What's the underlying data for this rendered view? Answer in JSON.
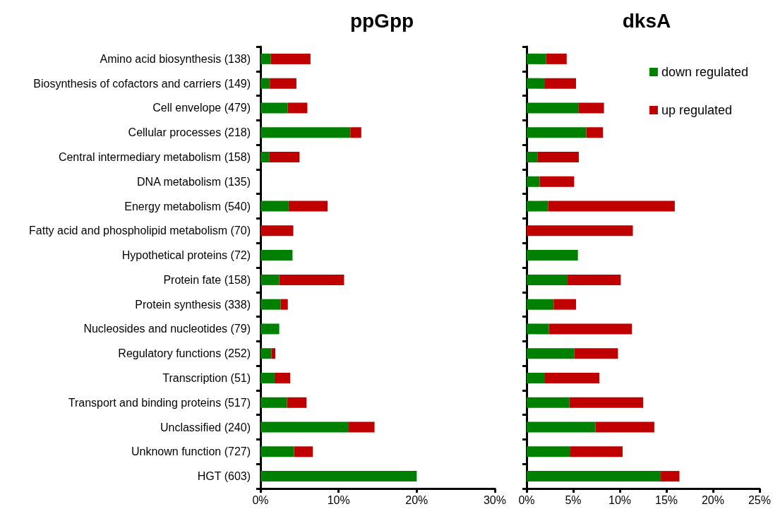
{
  "chart_data": [
    {
      "type": "bar",
      "orientation": "horizontal",
      "stacked": true,
      "title": "ppGpp",
      "categories": [
        "Amino acid biosynthesis (138)",
        "Biosynthesis of cofactors and carriers (149)",
        "Cell envelope (479)",
        "Cellular processes (218)",
        "Central intermediary metabolism (158)",
        "DNA metabolism (135)",
        "Energy metabolism (540)",
        "Fatty acid and phospholipid metabolism (70)",
        "Hypothetical proteins (72)",
        "Protein fate (158)",
        "Protein synthesis (338)",
        "Nucleosides and nucleotides (79)",
        "Regulatory functions (252)",
        "Transcription (51)",
        "Transport and binding proteins (517)",
        "Unclassified (240)",
        "Unknown function (727)",
        "HGT (603)"
      ],
      "series": [
        {
          "color": "#008000",
          "values": [
            1.3,
            1.2,
            3.5,
            11.5,
            1.1,
            0,
            3.6,
            0,
            4.1,
            2.4,
            2.6,
            2.4,
            1.4,
            1.8,
            3.4,
            11.3,
            4.3,
            20.0
          ]
        },
        {
          "color": "#c00000",
          "values": [
            5.1,
            3.4,
            2.5,
            1.4,
            3.9,
            0,
            5.0,
            4.2,
            0,
            8.3,
            0.9,
            0,
            0.5,
            2.0,
            2.5,
            3.3,
            2.4,
            0
          ]
        }
      ],
      "xlim": [
        0,
        30
      ],
      "xticks": [
        {
          "value": 0,
          "label": "0%"
        },
        {
          "value": 10,
          "label": "10%"
        },
        {
          "value": 20,
          "label": "20%"
        },
        {
          "value": 30,
          "label": "30%"
        }
      ],
      "grid": false,
      "legend": false
    },
    {
      "type": "bar",
      "orientation": "horizontal",
      "stacked": true,
      "title": "dksA",
      "categories": [
        null,
        null,
        null,
        null,
        null,
        null,
        null,
        null,
        null,
        null,
        null,
        null,
        null,
        null,
        null,
        null,
        null,
        null
      ],
      "series": [
        {
          "name": "down regulated",
          "color": "#008000",
          "values": [
            2.1,
            1.9,
            5.6,
            6.4,
            1.2,
            1.4,
            2.3,
            0,
            5.5,
            4.4,
            2.9,
            2.4,
            5.1,
            1.9,
            4.6,
            7.4,
            4.7,
            14.4
          ]
        },
        {
          "name": "up regulated",
          "color": "#c00000",
          "values": [
            2.2,
            3.4,
            2.7,
            1.8,
            4.4,
            3.7,
            13.6,
            11.4,
            0,
            5.7,
            2.4,
            8.9,
            4.7,
            5.9,
            7.9,
            6.3,
            5.6,
            2.0
          ]
        }
      ],
      "xlim": [
        0,
        25
      ],
      "xticks": [
        {
          "value": 0,
          "label": "0%"
        },
        {
          "value": 5,
          "label": "5%"
        },
        {
          "value": 10,
          "label": "10%"
        },
        {
          "value": 15,
          "label": "15%"
        },
        {
          "value": 20,
          "label": "20%"
        },
        {
          "value": 25,
          "label": "25%"
        }
      ],
      "tick_labels": "x",
      "grid": false,
      "legend": "top right"
    }
  ]
}
